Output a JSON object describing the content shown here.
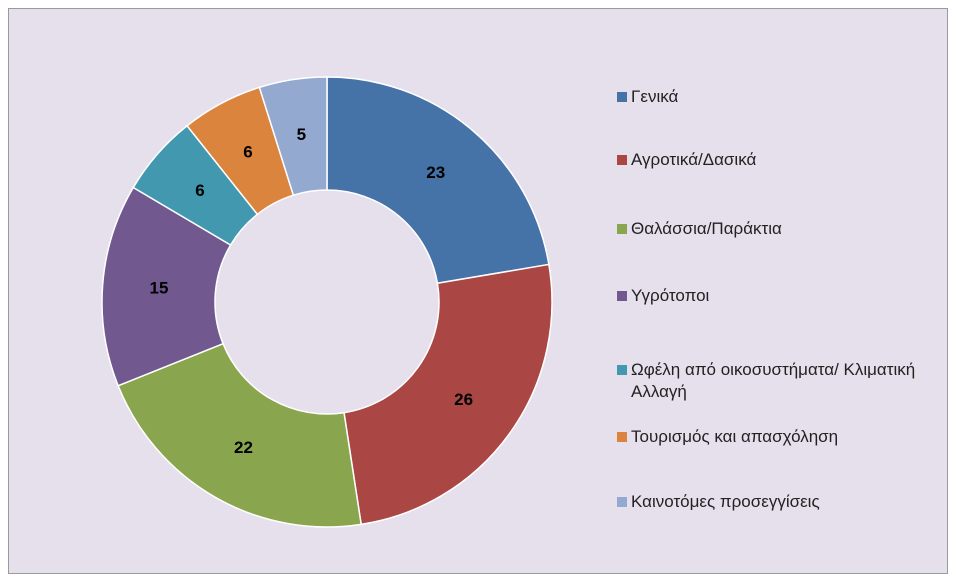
{
  "chart_data": {
    "type": "donut",
    "categories": [
      "Γενικά",
      "Αγροτικά/Δασικά",
      "Θαλάσσια/Παράκτια",
      "Υγρότοποι",
      "Ωφέλη από οικοσυστήματα/ Κλιματική Αλλαγή",
      "Τουρισμός και απασχόληση",
      "Καινοτόμες προσεγγίσεις"
    ],
    "values": [
      23,
      26,
      22,
      15,
      6,
      6,
      5
    ],
    "colors": [
      "#4572a7",
      "#aa4643",
      "#89a54e",
      "#71588f",
      "#4198af",
      "#db843d",
      "#93a9cf"
    ],
    "legend": "right"
  }
}
